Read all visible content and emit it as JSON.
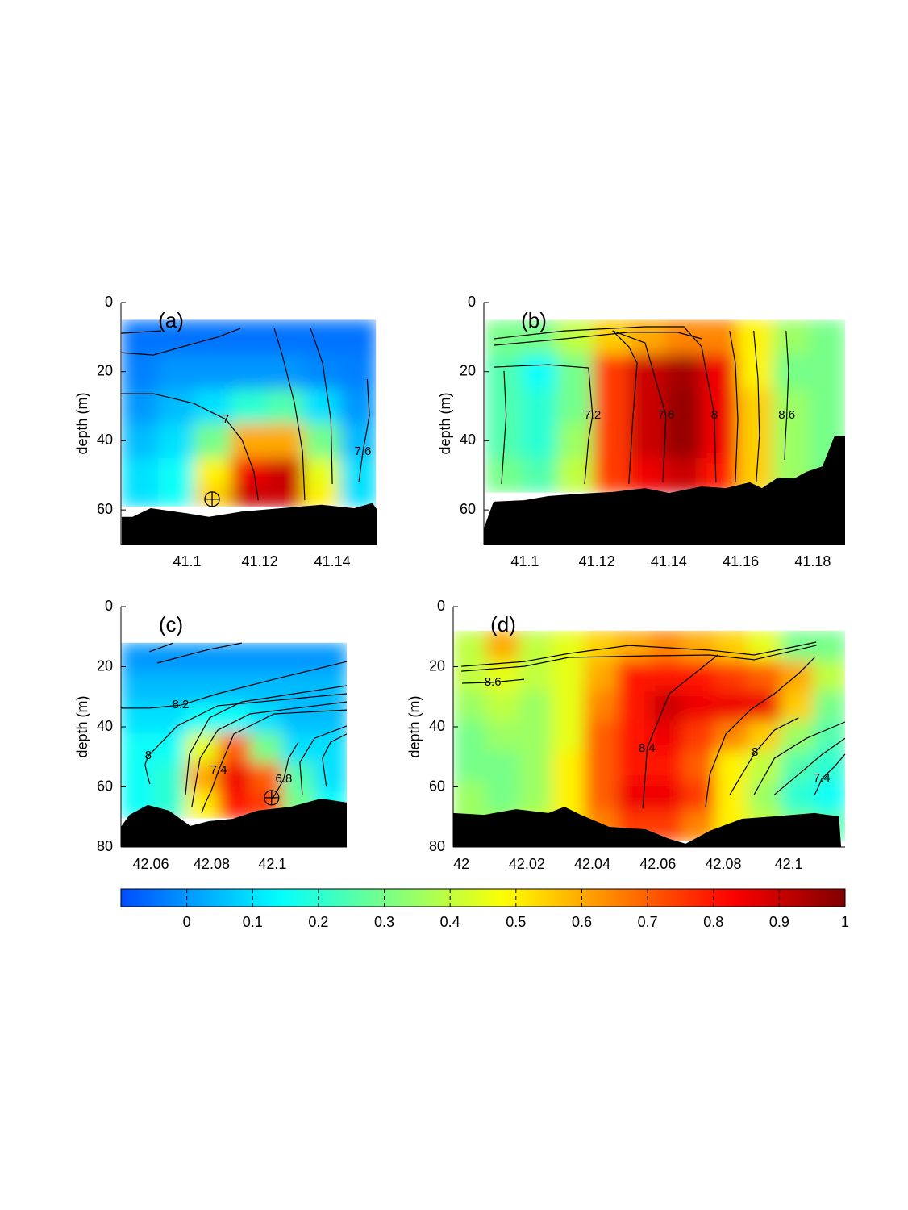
{
  "chart_data": [
    {
      "type": "heatmap",
      "label": "(a)",
      "ylabel": "depth (m)",
      "y_inverted": true,
      "xlim": [
        41.0818,
        41.1524
      ],
      "xticks": [
        41.1,
        41.12,
        41.14
      ],
      "ylim": [
        0,
        70
      ],
      "yticks": [
        0,
        20,
        40,
        60
      ],
      "x": [
        41.087,
        41.097,
        41.107,
        41.117,
        41.127,
        41.137,
        41.147
      ],
      "y": [
        10,
        20,
        30,
        40,
        50,
        56
      ],
      "values": [
        [
          -0.05,
          -0.05,
          -0.05,
          -0.05,
          -0.05,
          -0.05,
          -0.05
        ],
        [
          -0.03,
          0,
          0,
          0,
          0,
          -0.02,
          -0.03
        ],
        [
          0,
          0.05,
          0.1,
          0.2,
          0.25,
          0.1,
          0
        ],
        [
          0.05,
          0.1,
          0.3,
          0.6,
          0.6,
          0.3,
          0.05
        ],
        [
          0.1,
          0.15,
          0.5,
          0.85,
          0.9,
          0.45,
          0.1
        ],
        [
          0.1,
          0.15,
          0.55,
          0.9,
          0.9,
          0.5,
          0.1
        ]
      ],
      "contours": [
        {
          "level": 6.6,
          "x": [
            41.0818,
            41.0929
          ],
          "y": [
            8.9,
            8.2
          ]
        },
        {
          "level": 6.8,
          "x": [
            41.0818,
            41.0907,
            41.1018,
            41.1084,
            41.1147
          ],
          "y": [
            14.5,
            15.2,
            11.9,
            10,
            7.5
          ]
        },
        {
          "level": 7,
          "label": "7",
          "x": [
            41.0818,
            41.0907,
            41.1018,
            41.1107,
            41.1151,
            41.1184,
            41.1196
          ],
          "y": [
            26.4,
            26.4,
            29.2,
            33.8,
            39.7,
            49,
            57.2
          ]
        },
        {
          "level": 7.2,
          "x": [
            41.124,
            41.1262,
            41.1296,
            41.1318,
            41.1324
          ],
          "y": [
            7.5,
            15.2,
            29.2,
            43.2,
            57.2
          ]
        },
        {
          "level": 7.4,
          "x": [
            41.134,
            41.1373,
            41.1396,
            41.14
          ],
          "y": [
            7.5,
            17.5,
            33.8,
            52.5
          ]
        },
        {
          "level": 7.6,
          "label": "7.6",
          "x": [
            41.1496,
            41.1502,
            41.1484,
            41.1473
          ],
          "y": [
            22.2,
            32.7,
            43.2,
            52
          ]
        }
      ],
      "bathymetry": {
        "x": [
          41.082,
          41.085,
          41.09,
          41.1,
          41.106,
          41.115,
          41.137,
          41.146,
          41.151,
          41.1524
        ],
        "y": [
          62,
          62,
          59.5,
          61,
          62,
          60.5,
          58.5,
          59.5,
          58,
          60
        ]
      },
      "markers": {
        "x": [
          41.1069
        ],
        "y": [
          56.9
        ]
      }
    },
    {
      "type": "heatmap",
      "label": "(b)",
      "ylabel": "depth (m)",
      "y_inverted": true,
      "xlim": [
        41.0886,
        41.189
      ],
      "xticks": [
        41.1,
        41.12,
        41.14,
        41.16,
        41.18
      ],
      "ylim": [
        0,
        70
      ],
      "yticks": [
        0,
        20,
        40,
        60
      ],
      "x": [
        41.094,
        41.104,
        41.114,
        41.124,
        41.134,
        41.144,
        41.154,
        41.164,
        41.174,
        41.184
      ],
      "y": [
        10,
        20,
        30,
        40,
        50
      ],
      "values": [
        [
          0.3,
          0.3,
          0.4,
          0.55,
          0.6,
          0.65,
          0.65,
          0.5,
          0.35,
          0.3
        ],
        [
          0.25,
          0.15,
          0.3,
          0.75,
          0.9,
          0.95,
          0.85,
          0.5,
          0.3,
          0.3
        ],
        [
          0.25,
          0.2,
          0.3,
          0.75,
          0.9,
          0.97,
          0.85,
          0.55,
          0.35,
          0.3
        ],
        [
          0.25,
          0.2,
          0.35,
          0.75,
          0.9,
          0.97,
          0.85,
          0.55,
          0.35,
          0.3
        ],
        [
          0.3,
          0.25,
          0.4,
          0.75,
          0.85,
          0.9,
          0.8,
          0.55,
          0.35,
          0.3
        ]
      ],
      "contours": [
        {
          "level": 6.6,
          "x": [
            41.0913,
            41.111,
            41.1334,
            41.1446
          ],
          "y": [
            10.5,
            8.2,
            7,
            7
          ]
        },
        {
          "level": 6.8,
          "x": [
            41.0913,
            41.111,
            41.1289,
            41.1424,
            41.1491
          ],
          "y": [
            12.4,
            10.5,
            8.6,
            8.6,
            10.5
          ]
        },
        {
          "level": 7,
          "x": [
            41.0942,
            41.0948,
            41.0935
          ],
          "y": [
            19.8,
            32.7,
            52.5
          ]
        },
        {
          "level": 7.2,
          "label": "7.2",
          "x": [
            41.0913,
            41.1065,
            41.1177,
            41.1188,
            41.1177,
            41.1171,
            41.1166
          ],
          "y": [
            18.7,
            18,
            18.9,
            32.7,
            39.7,
            46.7,
            52.5
          ]
        },
        {
          "level": 7.4,
          "x": [
            41.1244,
            41.1289,
            41.1312,
            41.13,
            41.1289
          ],
          "y": [
            8.2,
            12.8,
            17.5,
            33.8,
            52.5
          ]
        },
        {
          "level": 7.6,
          "label": "7.6",
          "x": [
            41.1244,
            41.1334,
            41.1392,
            41.1388,
            41.1383
          ],
          "y": [
            8.2,
            11.7,
            32.7,
            43.2,
            52
          ]
        },
        {
          "level": 8,
          "label": "8",
          "x": [
            41.1446,
            41.1491,
            41.1527,
            41.1529,
            41.1531
          ],
          "y": [
            7.5,
            12.8,
            32.7,
            43.2,
            52
          ]
        },
        {
          "level": 8.2,
          "x": [
            41.1569,
            41.1585,
            41.1592,
            41.1585
          ],
          "y": [
            8.2,
            17.5,
            33.8,
            52
          ]
        },
        {
          "level": 8.4,
          "x": [
            41.1636,
            41.1648,
            41.1652,
            41.1643
          ],
          "y": [
            8.2,
            22.2,
            38.5,
            52
          ]
        },
        {
          "level": 8.6,
          "label": "8.6",
          "x": [
            41.1726,
            41.1733,
            41.1728,
            41.1724,
            41.1722
          ],
          "y": [
            8.2,
            19.8,
            32.7,
            39.7,
            45.5
          ]
        }
      ],
      "bathymetry": {
        "x": [
          41.0886,
          41.0913,
          41.0998,
          41.1065,
          41.1155,
          41.1244,
          41.1334,
          41.1401,
          41.1491,
          41.1558,
          41.1625,
          41.1659,
          41.1704,
          41.1749,
          41.1782,
          41.1827,
          41.1861,
          41.189
        ],
        "y": [
          65.3,
          57.6,
          57.2,
          56,
          55.3,
          54.8,
          53.7,
          55.1,
          53.2,
          53.7,
          52,
          53.7,
          50.6,
          50.9,
          49,
          47.4,
          38.5,
          38.7
        ]
      }
    },
    {
      "type": "heatmap",
      "label": "(c)",
      "ylabel": "depth (m)",
      "y_inverted": true,
      "xlim": [
        42.0502,
        42.1244
      ],
      "xticks": [
        42.06,
        42.08,
        42.1
      ],
      "ylim": [
        0,
        80
      ],
      "yticks": [
        0,
        20,
        40,
        60,
        80
      ],
      "x": [
        42.0555,
        42.0661,
        42.0767,
        42.0873,
        42.0979,
        42.1085,
        42.1191
      ],
      "y": [
        17,
        27,
        37,
        47,
        57,
        66
      ],
      "values": [
        [
          0,
          0,
          0,
          0,
          0,
          0,
          0
        ],
        [
          0.05,
          0.05,
          0.05,
          0.05,
          0.05,
          0.05,
          0.05
        ],
        [
          0.1,
          0.1,
          0.15,
          0.15,
          0.1,
          0.05,
          0.05
        ],
        [
          0.15,
          0.15,
          0.45,
          0.7,
          0.3,
          0.1,
          0.1
        ],
        [
          0.15,
          0.2,
          0.6,
          0.85,
          0.7,
          0.25,
          0.1
        ],
        [
          0.15,
          0.2,
          0.5,
          0.8,
          0.75,
          0.3,
          0.15
        ]
      ],
      "contours": [
        {
          "level": 8.6,
          "x": [
            42.0595,
            42.0674
          ],
          "y": [
            15,
            12.1
          ]
        },
        {
          "level": 8.4,
          "x": [
            42.0621,
            42.0793,
            42.0899
          ],
          "y": [
            18.8,
            14.2,
            12.1
          ]
        },
        {
          "level": 8.2,
          "label": "8.2",
          "x": [
            42.0502,
            42.0595,
            42.0648,
            42.0698,
            42.082,
            42.1005,
            42.1244
          ],
          "y": [
            33.8,
            33.8,
            33.3,
            32.8,
            29,
            24.2,
            18.3
          ]
        },
        {
          "level": 8,
          "label": "8",
          "x": [
            42.0597,
            42.0587,
            42.0581,
            42.0592,
            42.0687,
            42.082,
            42.1244
          ],
          "y": [
            59.1,
            55.3,
            52.6,
            49.7,
            39.7,
            33,
            29
          ]
        },
        {
          "level": 7.8,
          "x": [
            42.0714,
            42.0727,
            42.0793,
            42.0899,
            42.1244
          ],
          "y": [
            62.6,
            49.1,
            37,
            31.7,
            26.3
          ]
        },
        {
          "level": 7.6,
          "x": [
            42.0735,
            42.0762,
            42.082,
            42.0926,
            42.1244
          ],
          "y": [
            66.6,
            50.5,
            41.1,
            35.7,
            31.7
          ]
        },
        {
          "level": 7.4,
          "label": "7.4",
          "x": [
            42.0767,
            42.078,
            42.0799,
            42.0823,
            42.0873,
            42.1005,
            42.1244
          ],
          "y": [
            68.7,
            65.2,
            61.2,
            54.5,
            42.4,
            35.7,
            34.4
          ]
        },
        {
          "level": 6.8,
          "label": "6.8",
          "x": [
            42.1,
            42.1019,
            42.1037,
            42.1053,
            42.1085
          ],
          "y": [
            63.9,
            60.7,
            57.4,
            50.5,
            45.1
          ]
        },
        {
          "level": 7,
          "x": [
            42.1098,
            42.109,
            42.1138,
            42.1244
          ],
          "y": [
            62.6,
            51.8,
            43.8,
            39.7
          ]
        },
        {
          "level": 7.2,
          "x": [
            42.1177,
            42.1164,
            42.1191,
            42.1244
          ],
          "y": [
            59.9,
            50.5,
            45.1,
            42.4
          ]
        }
      ],
      "bathymetry": {
        "x": [
          42.0502,
          42.053,
          42.059,
          42.066,
          42.073,
          42.079,
          42.087,
          42.095,
          42.106,
          42.116,
          42.1244
        ],
        "y": [
          73.3,
          69.3,
          66,
          67.9,
          73,
          71.4,
          70.6,
          67.9,
          66.6,
          63.9,
          65.2
        ]
      },
      "markers": {
        "x": [
          42.0997
        ],
        "y": [
          63.6
        ]
      }
    },
    {
      "type": "heatmap",
      "label": "(d)",
      "ylabel": "depth (m)",
      "y_inverted": true,
      "xlim": [
        41.9975,
        42.1172
      ],
      "xticks": [
        42,
        42.02,
        42.04,
        42.06,
        42.08,
        42.1
      ],
      "ylim": [
        0,
        80
      ],
      "yticks": [
        0,
        20,
        40,
        60,
        80
      ],
      "x": [
        42.0025,
        42.0125,
        42.0225,
        42.0325,
        42.0425,
        42.0525,
        42.0625,
        42.0725,
        42.0825,
        42.0925,
        42.1025,
        42.1125
      ],
      "y": [
        13,
        23,
        33,
        43,
        53,
        63,
        73
      ],
      "values": [
        [
          0.4,
          0.6,
          0.4,
          0.45,
          0.55,
          0.6,
          0.65,
          0.6,
          0.55,
          0.45,
          0.3,
          0.3
        ],
        [
          0.4,
          0.45,
          0.4,
          0.45,
          0.6,
          0.8,
          0.8,
          0.8,
          0.75,
          0.7,
          0.6,
          0.4
        ],
        [
          0.35,
          0.4,
          0.35,
          0.45,
          0.65,
          0.8,
          0.9,
          0.85,
          0.85,
          0.85,
          0.55,
          0.3
        ],
        [
          0.3,
          0.35,
          0.35,
          0.45,
          0.7,
          0.8,
          0.85,
          0.75,
          0.65,
          0.55,
          0.35,
          0.25
        ],
        [
          0.3,
          0.3,
          0.35,
          0.5,
          0.7,
          0.8,
          0.8,
          0.7,
          0.5,
          0.4,
          0.25,
          0.2
        ],
        [
          0.35,
          0.3,
          0.35,
          0.5,
          0.7,
          0.85,
          0.85,
          0.75,
          0.5,
          0.35,
          0.2,
          0.15
        ],
        [
          0.35,
          0.35,
          0.4,
          0.5,
          0.65,
          0.75,
          0.75,
          0.65,
          0.5,
          0.4,
          0.3,
          0.25
        ]
      ],
      "contours": [
        {
          "level": 9,
          "x": [
            42,
            42.0192,
            42.0328,
            42.0512,
            42.0759,
            42.0894,
            42.1084
          ],
          "y": [
            19.9,
            18.3,
            15.6,
            12.9,
            14.5,
            16.1,
            11.8
          ]
        },
        {
          "level": 8.8,
          "x": [
            42,
            42.0192,
            42.0328,
            42.0562,
            42.0759,
            42.0894,
            42.1084
          ],
          "y": [
            21.5,
            19.9,
            16.9,
            16.4,
            16.1,
            17.7,
            12.9
          ]
        },
        {
          "level": 8.6,
          "label": "8.6",
          "x": [
            42.0002,
            42.0096,
            42.0192
          ],
          "y": [
            25.5,
            25.2,
            24.2
          ]
        },
        {
          "level": 8.4,
          "label": "8.4",
          "x": [
            42.0554,
            42.0562,
            42.0567,
            42.0635,
            42.0783
          ],
          "y": [
            67.1,
            55.8,
            47.2,
            29,
            16.1
          ]
        },
        {
          "level": 8.2,
          "x": [
            42.0746,
            42.0759,
            42.0808,
            42.0882,
            42.0956,
            42.103,
            42.1079
          ],
          "y": [
            66.6,
            55.8,
            42.4,
            34.4,
            29,
            22.3,
            16.9
          ]
        },
        {
          "level": 8,
          "label": "8",
          "x": [
            42.082,
            42.0857,
            42.0897,
            42.0956,
            42.103
          ],
          "y": [
            62.6,
            55.8,
            48.6,
            41.1,
            37
          ]
        },
        {
          "level": 7.8,
          "x": [
            42.0894,
            42.0956,
            42.1054,
            42.1172
          ],
          "y": [
            62.6,
            50.5,
            43.8,
            38.4
          ]
        },
        {
          "level": 7.6,
          "x": [
            42.0956,
            42.103,
            42.1103,
            42.1172
          ],
          "y": [
            62.6,
            55.8,
            49.1,
            43.8
          ]
        },
        {
          "level": 7.4,
          "label": "7.4",
          "x": [
            42.1079,
            42.1091,
            42.1101,
            42.114,
            42.1172
          ],
          "y": [
            62.6,
            59.9,
            57.2,
            53.2,
            49.1
          ]
        }
      ],
      "bathymetry": {
        "x": [
          41.9975,
          42.0069,
          42.0167,
          42.0266,
          42.0315,
          42.0365,
          42.0451,
          42.0562,
          42.0635,
          42.0685,
          42.0759,
          42.0857,
          42.0956,
          42.1079,
          42.1153,
          42.116
        ],
        "y": [
          68.7,
          69.3,
          67.4,
          68.7,
          66.6,
          69.3,
          73.3,
          74.1,
          77.3,
          78.9,
          74.6,
          70.6,
          69.8,
          68.7,
          69.8,
          80
        ]
      }
    },
    {
      "type": "colorbar",
      "colormap": "jet",
      "lim": [
        -0.1,
        1
      ],
      "ticks": [
        0,
        0.1,
        0.2,
        0.3,
        0.4,
        0.5,
        0.6,
        0.7,
        0.8,
        0.9,
        1
      ]
    }
  ]
}
